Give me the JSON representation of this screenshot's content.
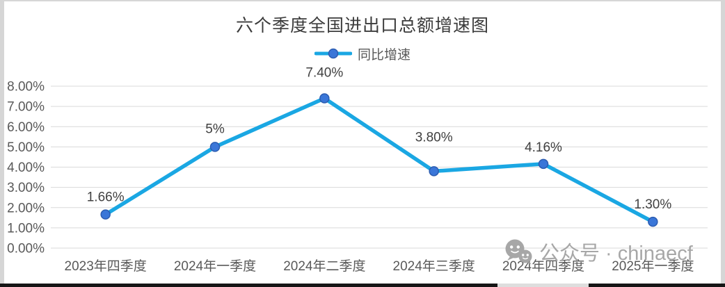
{
  "page": {
    "watermark_text": "公众号 · chinaecf"
  },
  "chart_data": {
    "type": "line",
    "title": "六个季度全国进出口总额增速图",
    "categories": [
      "2023年四季度",
      "2024年一季度",
      "2024年二季度",
      "2024年三季度",
      "2024年四季度",
      "2025年一季度"
    ],
    "series": [
      {
        "name": "同比增速",
        "values": [
          1.66,
          5,
          7.4,
          3.8,
          4.16,
          1.3
        ]
      }
    ],
    "data_labels": [
      "1.66%",
      "5%",
      "7.40%",
      "3.80%",
      "4.16%",
      "1.30%"
    ],
    "y_ticks": [
      "8.00%",
      "7.00%",
      "6.00%",
      "5.00%",
      "4.00%",
      "3.00%",
      "2.00%",
      "1.00%",
      "0.00%"
    ],
    "xlabel": "",
    "ylabel": "",
    "ylim": [
      0,
      8
    ],
    "grid": true,
    "legend_position": "top-center",
    "colors": {
      "line": "#1aa7e3",
      "marker_fill": "#3a76d8",
      "marker_stroke": "#2c5cb0",
      "grid": "#d9d9d9",
      "axis_text": "#595959",
      "label_text": "#404040",
      "title_text": "#3b3b3b",
      "watermark": "#a0a0a0"
    }
  }
}
